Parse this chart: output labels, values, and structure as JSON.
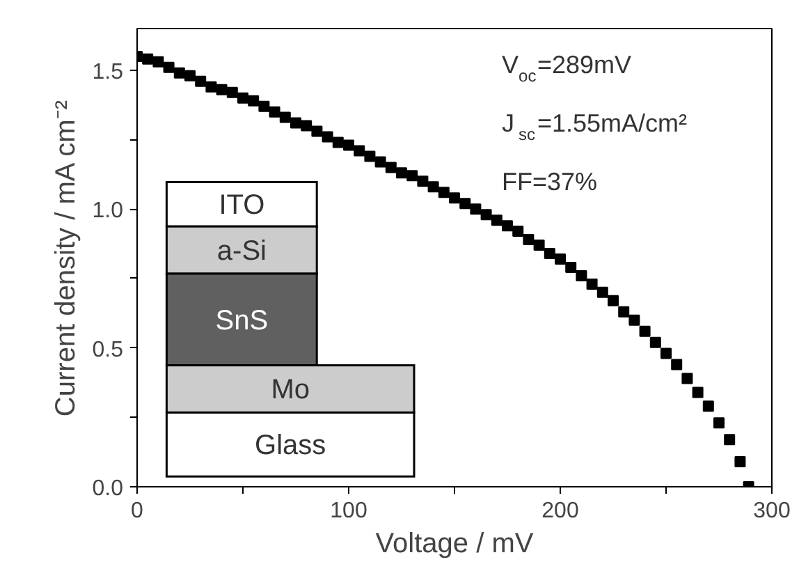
{
  "chart_data": {
    "type": "scatter",
    "xlabel": "Voltage / mV",
    "ylabel": "Current density / mA cm⁻²",
    "x": [
      0,
      5,
      10,
      15,
      20,
      25,
      30,
      35,
      40,
      45,
      50,
      55,
      60,
      65,
      70,
      75,
      80,
      85,
      90,
      95,
      100,
      105,
      110,
      115,
      120,
      125,
      130,
      135,
      140,
      145,
      150,
      155,
      160,
      165,
      170,
      175,
      180,
      185,
      190,
      195,
      200,
      205,
      210,
      215,
      220,
      225,
      230,
      235,
      240,
      245,
      250,
      255,
      260,
      265,
      270,
      275,
      280,
      285,
      289
    ],
    "series": [
      {
        "color": "#000000",
        "values": [
          1.55,
          1.54,
          1.53,
          1.51,
          1.49,
          1.48,
          1.46,
          1.44,
          1.43,
          1.42,
          1.4,
          1.39,
          1.37,
          1.35,
          1.33,
          1.31,
          1.3,
          1.28,
          1.26,
          1.24,
          1.23,
          1.21,
          1.19,
          1.17,
          1.15,
          1.13,
          1.12,
          1.1,
          1.08,
          1.06,
          1.04,
          1.02,
          1.0,
          0.98,
          0.96,
          0.94,
          0.92,
          0.89,
          0.87,
          0.84,
          0.82,
          0.79,
          0.76,
          0.73,
          0.7,
          0.67,
          0.63,
          0.6,
          0.56,
          0.52,
          0.48,
          0.44,
          0.39,
          0.34,
          0.29,
          0.23,
          0.17,
          0.09,
          0.0
        ]
      }
    ],
    "marker": "square",
    "grid": false,
    "xlim": [
      0,
      300
    ],
    "xticks": [
      0,
      {
        "value": 50,
        "label": null
      },
      100,
      {
        "value": 150,
        "label": null
      },
      200,
      {
        "value": 250,
        "label": null
      },
      300
    ],
    "ylim": [
      0,
      1.65
    ],
    "yticks": [
      "0.0",
      {
        "value": 0.25,
        "label": null
      },
      {
        "value": 0.5,
        "label": "0.5"
      },
      {
        "value": 0.75,
        "label": null
      },
      {
        "value": 1.0,
        "label": "1.0"
      },
      {
        "value": 1.25,
        "label": null
      },
      {
        "value": 1.5,
        "label": "1.5"
      }
    ],
    "annotations": [
      "V$_{oc}$=289mV",
      "J$_{sc}$=1.55mA/cm²",
      "FF=37%",
      "ITO",
      "a-Si",
      "SnS",
      "Mo",
      "Glass"
    ]
  }
}
